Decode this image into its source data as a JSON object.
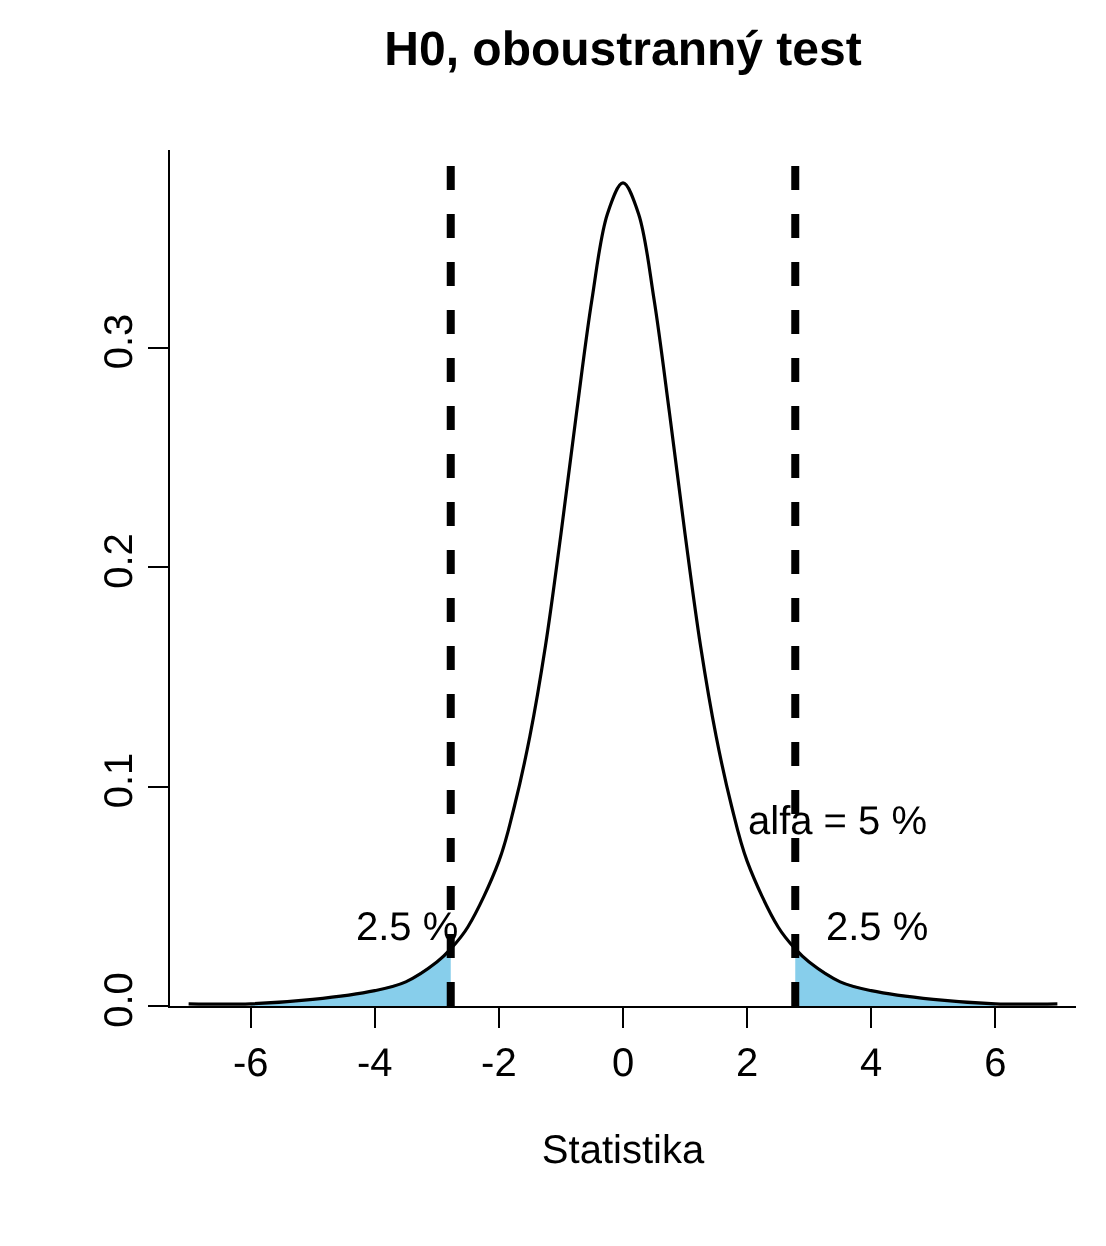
{
  "chart_data": {
    "type": "line",
    "title": "H0, oboustranný test",
    "xlabel": "Statistika",
    "xlim": [
      -7.3,
      7.3
    ],
    "xticks": [
      -6,
      -4,
      -2,
      0,
      2,
      4,
      6
    ],
    "ylim": [
      0,
      0.39
    ],
    "yticks": [
      {
        "value": 0,
        "label": "0.0"
      },
      {
        "value": 0.1,
        "label": "0.1"
      },
      {
        "value": 0.2,
        "label": "0.2"
      },
      {
        "value": 0.3,
        "label": "0.3"
      }
    ],
    "legend": false,
    "marker": "none",
    "x": [
      -7,
      -6,
      -5,
      -4,
      -3.5,
      -3,
      -2.776,
      -2.5,
      -2,
      -1.75,
      -1.5,
      -1.25,
      -1,
      -0.75,
      -0.5,
      -0.25,
      0,
      0.25,
      0.5,
      0.75,
      1,
      1.25,
      1.5,
      1.75,
      2,
      2.5,
      2.776,
      3,
      3.5,
      4,
      5,
      6,
      7
    ],
    "series": [
      {
        "type": "area",
        "color": "#87ceeb",
        "x": [
          -6,
          -5,
          -4,
          -3.5,
          -3,
          -2.776
        ],
        "values": [
          0.001,
          0.003,
          0.007,
          0.011,
          0.02,
          0.026
        ]
      },
      {
        "type": "area",
        "color": "#87ceeb",
        "x": [
          2.776,
          3,
          3.5,
          4,
          5,
          6
        ],
        "values": [
          0.026,
          0.02,
          0.011,
          0.007,
          0.003,
          0.001
        ]
      },
      {
        "color": "#000000",
        "line_style": "solid",
        "values": [
          0.001,
          0.001,
          0.003,
          0.007,
          0.011,
          0.02,
          0.026,
          0.036,
          0.066,
          0.091,
          0.123,
          0.164,
          0.215,
          0.27,
          0.322,
          0.361,
          0.375,
          0.361,
          0.322,
          0.27,
          0.215,
          0.164,
          0.123,
          0.091,
          0.066,
          0.036,
          0.026,
          0.02,
          0.011,
          0.007,
          0.003,
          0.001,
          0.001
        ]
      }
    ],
    "ref_lines": [
      {
        "axis": "x",
        "value": -2.776,
        "color": "#000000",
        "line_style": "dashed"
      },
      {
        "axis": "x",
        "value": 2.776,
        "color": "#000000",
        "line_style": "dashed"
      }
    ],
    "annotations": [
      "2.5 %",
      "2.5 %",
      "alfa = 5 %"
    ]
  }
}
